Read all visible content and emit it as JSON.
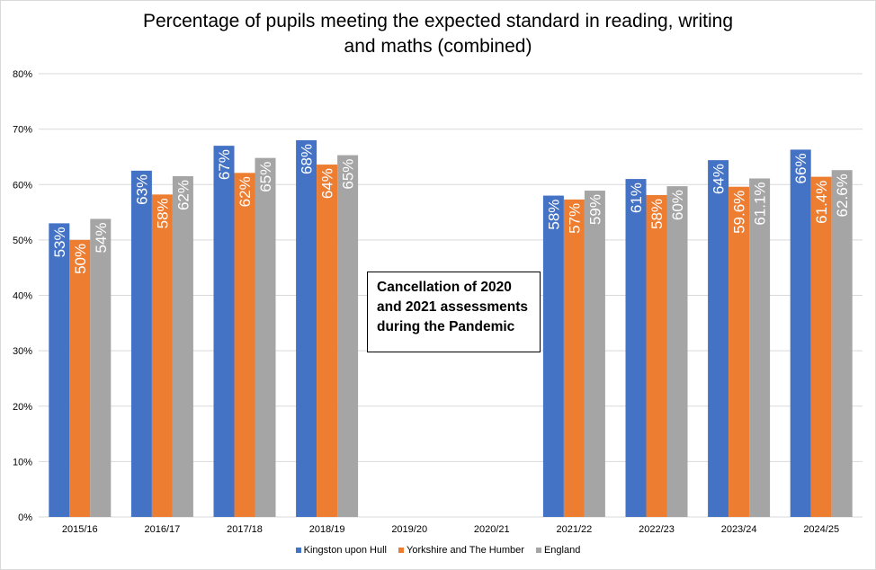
{
  "chart_data": {
    "type": "bar",
    "title": "Percentage of pupils meeting the expected standard in reading, writing and maths (combined)",
    "title_lines": [
      "Percentage of pupils meeting the expected standard in reading, writing",
      "and maths (combined)"
    ],
    "categories": [
      "2015/16",
      "2016/17",
      "2017/18",
      "2018/19",
      "2019/20",
      "2020/21",
      "2021/22",
      "2022/23",
      "2023/24",
      "2024/25"
    ],
    "series": [
      {
        "name": "Kingston upon Hull",
        "color": "#4472c4",
        "values": [
          53,
          62.5,
          67,
          68,
          null,
          null,
          58,
          61,
          64.4,
          66.3
        ],
        "labels": [
          "53%",
          "63%",
          "67%",
          "68%",
          null,
          null,
          "58%",
          "61%",
          "64%",
          "66%"
        ]
      },
      {
        "name": "Yorkshire and The Humber",
        "color": "#ed7d31",
        "values": [
          50,
          58.2,
          62.1,
          63.6,
          null,
          null,
          57.3,
          58.1,
          59.6,
          61.4
        ],
        "labels": [
          "50%",
          "58%",
          "62%",
          "64%",
          null,
          null,
          "57%",
          "58%",
          "59.6%",
          "61.4%"
        ]
      },
      {
        "name": "England",
        "color": "#a5a5a5",
        "values": [
          53.8,
          61.5,
          64.8,
          65.3,
          null,
          null,
          58.9,
          59.7,
          61.1,
          62.6
        ],
        "labels": [
          "54%",
          "62%",
          "65%",
          "65%",
          null,
          null,
          "59%",
          "60%",
          "61.1%",
          "62.6%"
        ]
      }
    ],
    "ylim": [
      0,
      80
    ],
    "yticks": [
      "0%",
      "10%",
      "20%",
      "30%",
      "40%",
      "50%",
      "60%",
      "70%",
      "80%"
    ],
    "grid": true,
    "legend": "bottom",
    "annotation": [
      "Cancellation of 2020",
      "and 2021 assessments",
      "during the Pandemic"
    ]
  }
}
